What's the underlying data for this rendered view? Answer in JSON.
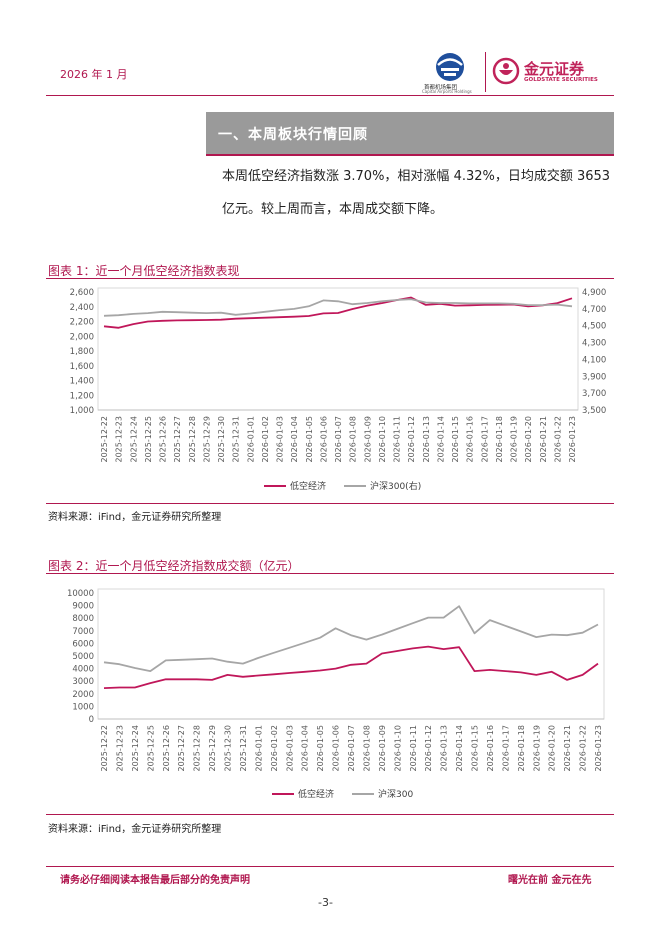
{
  "header": {
    "date": "2026 年 1 月",
    "logo_left_caption": "首都机场集团",
    "logo_left_caption_en": "Capital Airports Holdings",
    "logo_right_name": "金元证券",
    "logo_right_en": "GOLDSTATE SECURITIES"
  },
  "section": {
    "title": "一、本周板块行情回顾",
    "paragraph": "本周低空经济指数涨 3.70%，相对涨幅 4.32%，日均成交额 3653 亿元。较上周而言，本周成交额下降。"
  },
  "figures": [
    {
      "title": "图表 1：近一个月低空经济指数表现",
      "source": "资料来源：iFind，金元证券研究所整理"
    },
    {
      "title": "图表 2：近一个月低空经济指数成交额（亿元）",
      "source": "资料来源：iFind，金元证券研究所整理"
    }
  ],
  "chart_data": [
    {
      "type": "line",
      "x": [
        "2025-12-22",
        "2025-12-23",
        "2025-12-24",
        "2025-12-25",
        "2025-12-26",
        "2025-12-27",
        "2025-12-28",
        "2025-12-29",
        "2025-12-30",
        "2025-12-31",
        "2026-01-01",
        "2026-01-02",
        "2026-01-03",
        "2026-01-04",
        "2026-01-05",
        "2026-01-06",
        "2026-01-07",
        "2026-01-08",
        "2026-01-09",
        "2026-01-10",
        "2026-01-11",
        "2026-01-12",
        "2026-01-13",
        "2026-01-14",
        "2026-01-15",
        "2026-01-16",
        "2026-01-17",
        "2026-01-18",
        "2026-01-19",
        "2026-01-20",
        "2026-01-21",
        "2026-01-22",
        "2026-01-23"
      ],
      "series": [
        {
          "name": "低空经济",
          "axis": "left",
          "color": "#c0175a",
          "values": [
            2135,
            2115,
            2165,
            2200,
            2210,
            2215,
            2218,
            2220,
            2225,
            2238,
            2245,
            2252,
            2258,
            2265,
            2275,
            2310,
            2315,
            2370,
            2415,
            2450,
            2490,
            2525,
            2425,
            2440,
            2415,
            2420,
            2425,
            2428,
            2430,
            2405,
            2420,
            2450,
            2515
          ]
        },
        {
          "name": "沪深300(右)",
          "axis": "right",
          "color": "#a6a6a6",
          "values": [
            4618,
            4625,
            4640,
            4650,
            4665,
            4660,
            4655,
            4650,
            4655,
            4630,
            4645,
            4665,
            4685,
            4700,
            4730,
            4800,
            4790,
            4755,
            4770,
            4790,
            4805,
            4815,
            4775,
            4770,
            4770,
            4765,
            4765,
            4765,
            4760,
            4745,
            4745,
            4750,
            4730
          ]
        }
      ],
      "ylim_left": [
        1000,
        2600
      ],
      "yticks_left": [
        1000,
        1200,
        1400,
        1600,
        1800,
        2000,
        2200,
        2400,
        2600
      ],
      "ytick_labels_left": [
        "1,000",
        "1,200",
        "1,400",
        "1,600",
        "1,800",
        "2,000",
        "2,200",
        "2,400",
        "2,600"
      ],
      "ylim_right": [
        3500,
        4900
      ],
      "yticks_right": [
        3500,
        3700,
        3900,
        4100,
        4300,
        4500,
        4700,
        4900
      ],
      "ytick_labels_right": [
        "3,500",
        "3,700",
        "3,900",
        "4,100",
        "4,300",
        "4,500",
        "4,700",
        "4,900"
      ],
      "legend": [
        "低空经济",
        "沪深300(右)"
      ],
      "legend_position": "bottom",
      "grid": false
    },
    {
      "type": "line",
      "x": [
        "2025-12-22",
        "2025-12-23",
        "2025-12-24",
        "2025-12-25",
        "2025-12-26",
        "2025-12-27",
        "2025-12-28",
        "2025-12-29",
        "2025-12-30",
        "2025-12-31",
        "2026-01-01",
        "2026-01-02",
        "2026-01-03",
        "2026-01-04",
        "2026-01-05",
        "2026-01-06",
        "2026-01-07",
        "2026-01-08",
        "2026-01-09",
        "2026-01-10",
        "2026-01-11",
        "2026-01-12",
        "2026-01-13",
        "2026-01-14",
        "2026-01-15",
        "2026-01-16",
        "2026-01-17",
        "2026-01-18",
        "2026-01-19",
        "2026-01-20",
        "2026-01-21",
        "2026-01-22",
        "2026-01-23"
      ],
      "series": [
        {
          "name": "低空经济",
          "color": "#c0175a",
          "values": [
            2450,
            2500,
            2500,
            2850,
            3150,
            3150,
            3150,
            3100,
            3500,
            3350,
            3450,
            3550,
            3650,
            3750,
            3850,
            4000,
            4300,
            4400,
            5200,
            5400,
            5600,
            5750,
            5550,
            5700,
            3800,
            3900,
            3800,
            3700,
            3500,
            3750,
            3100,
            3500,
            4400
          ]
        },
        {
          "name": "沪深300",
          "color": "#a6a6a6",
          "values": [
            4500,
            4350,
            4050,
            3800,
            4650,
            4700,
            4750,
            4800,
            4550,
            4400,
            4850,
            5250,
            5650,
            6050,
            6450,
            7200,
            6650,
            6300,
            6700,
            7150,
            7600,
            8050,
            8050,
            8950,
            6800,
            7850,
            7400,
            6950,
            6500,
            6700,
            6650,
            6850,
            7500
          ]
        }
      ],
      "ylim": [
        0,
        10000
      ],
      "yticks": [
        0,
        1000,
        2000,
        3000,
        4000,
        5000,
        6000,
        7000,
        8000,
        9000,
        10000
      ],
      "legend": [
        "低空经济",
        "沪深300"
      ],
      "legend_position": "bottom",
      "grid": false
    }
  ],
  "footer": {
    "disclaimer": "请务必仔细阅读本报告最后部分的免责声明",
    "slogan": "曙光在前 金元在先",
    "page": "-3-"
  }
}
